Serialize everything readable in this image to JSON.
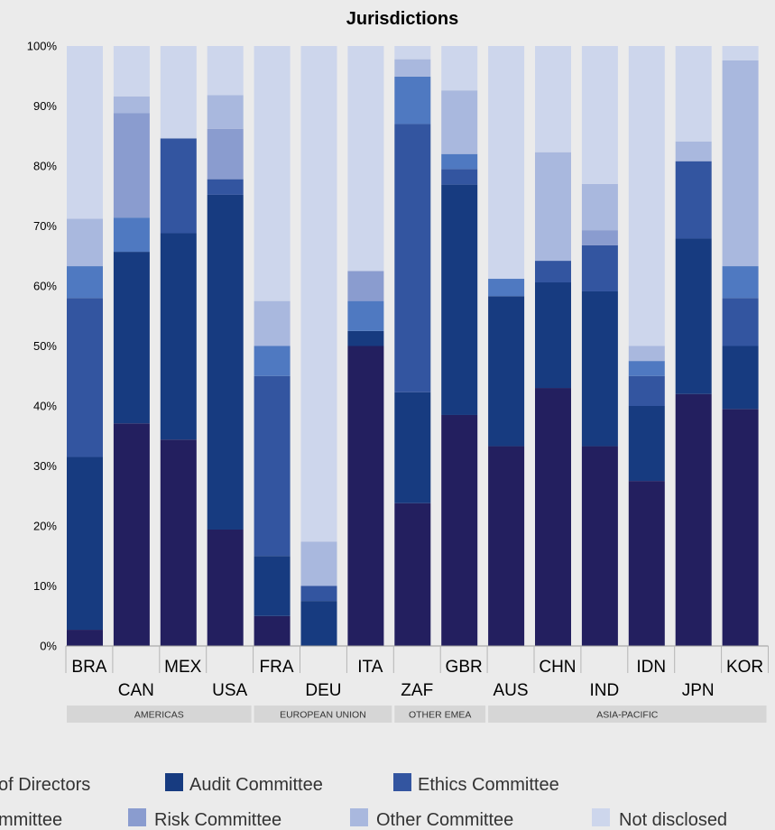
{
  "colors": {
    "background": "#ebebeb",
    "group_band": "#d6d6d6",
    "series": [
      "#231f5f",
      "#173b80",
      "#3355a0",
      "#4f79c1",
      "#8a9ccf",
      "#a9b8de",
      "#cdd6ec"
    ]
  },
  "chart_data": {
    "type": "bar",
    "stacked": true,
    "title": "Jurisdictions",
    "xlabel": "",
    "ylabel": "",
    "ylim": [
      0,
      100
    ],
    "yticks": [
      "0%",
      "10%",
      "20%",
      "30%",
      "40%",
      "50%",
      "60%",
      "70%",
      "80%",
      "90%",
      "100%"
    ],
    "grid": false,
    "legend_position": "bottom",
    "categories": [
      "BRA",
      "CAN",
      "MEX",
      "USA",
      "FRA",
      "DEU",
      "ITA",
      "ZAF",
      "GBR",
      "AUS",
      "CHN",
      "IND",
      "IDN",
      "JPN",
      "KOR"
    ],
    "groups": [
      {
        "label": "AMERICAS",
        "categories": [
          "BRA",
          "CAN",
          "MEX",
          "USA"
        ]
      },
      {
        "label": "EUROPEAN UNION",
        "categories": [
          "FRA",
          "DEU",
          "ITA"
        ]
      },
      {
        "label": "OTHER EMEA",
        "categories": [
          "ZAF",
          "GBR"
        ]
      },
      {
        "label": "ASIA-PACIFIC",
        "categories": [
          "AUS",
          "CHN",
          "IND",
          "IDN",
          "JPN",
          "KOR"
        ]
      }
    ],
    "series": [
      {
        "name": "of Directors",
        "values": [
          2.7,
          37.1,
          34.4,
          19.4,
          5.0,
          0.0,
          50.0,
          23.8,
          38.5,
          33.3,
          43.0,
          33.3,
          27.5,
          42.0,
          39.5
        ]
      },
      {
        "name": "Audit Committee",
        "values": [
          28.8,
          28.6,
          34.4,
          55.8,
          10.0,
          7.5,
          2.5,
          18.5,
          38.4,
          25.0,
          17.6,
          25.8,
          12.5,
          25.9,
          10.5
        ]
      },
      {
        "name": "Ethics Committee",
        "values": [
          26.5,
          0.0,
          15.8,
          2.6,
          30.0,
          2.5,
          0.0,
          44.7,
          2.6,
          0.0,
          3.6,
          7.7,
          5.0,
          12.9,
          8.0
        ]
      },
      {
        "name": "mmittee",
        "values": [
          5.3,
          5.7,
          0.0,
          0.0,
          5.0,
          0.0,
          5.0,
          7.9,
          2.5,
          2.9,
          0.0,
          0.0,
          2.5,
          0.0,
          5.3
        ]
      },
      {
        "name": "Risk Committee",
        "values": [
          0.0,
          17.4,
          0.0,
          8.4,
          0.0,
          0.0,
          5.0,
          0.0,
          0.0,
          0.0,
          0.0,
          2.5,
          0.0,
          0.0,
          0.0
        ]
      },
      {
        "name": "Other Committee",
        "values": [
          7.9,
          2.8,
          0.0,
          5.6,
          7.5,
          7.4,
          0.0,
          2.9,
          10.6,
          0.0,
          18.1,
          7.7,
          2.5,
          3.3,
          34.3
        ]
      },
      {
        "name": "Not disclosed",
        "values": [
          28.8,
          8.4,
          15.4,
          8.2,
          42.5,
          82.6,
          37.5,
          2.2,
          7.4,
          38.8,
          17.7,
          23.0,
          50.0,
          15.9,
          2.4
        ]
      }
    ]
  }
}
